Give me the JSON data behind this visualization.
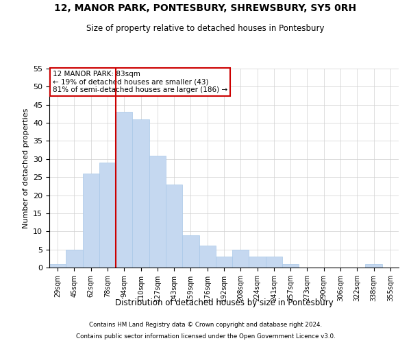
{
  "title1": "12, MANOR PARK, PONTESBURY, SHREWSBURY, SY5 0RH",
  "title2": "Size of property relative to detached houses in Pontesbury",
  "xlabel": "Distribution of detached houses by size in Pontesbury",
  "ylabel": "Number of detached properties",
  "categories": [
    "29sqm",
    "45sqm",
    "62sqm",
    "78sqm",
    "94sqm",
    "110sqm",
    "127sqm",
    "143sqm",
    "159sqm",
    "176sqm",
    "192sqm",
    "208sqm",
    "224sqm",
    "241sqm",
    "257sqm",
    "273sqm",
    "290sqm",
    "306sqm",
    "322sqm",
    "338sqm",
    "355sqm"
  ],
  "values": [
    1,
    5,
    26,
    29,
    43,
    41,
    31,
    23,
    9,
    6,
    3,
    5,
    3,
    3,
    1,
    0,
    0,
    0,
    0,
    1,
    0
  ],
  "bar_color": "#c5d8f0",
  "bar_edge_color": "#a8c8e8",
  "vline_x": 3.5,
  "vline_color": "#cc0000",
  "annotation_text": "12 MANOR PARK: 83sqm\n← 19% of detached houses are smaller (43)\n81% of semi-detached houses are larger (186) →",
  "annotation_box_color": "#ffffff",
  "annotation_box_edge_color": "#cc0000",
  "ylim": [
    0,
    55
  ],
  "yticks": [
    0,
    5,
    10,
    15,
    20,
    25,
    30,
    35,
    40,
    45,
    50,
    55
  ],
  "footer1": "Contains HM Land Registry data © Crown copyright and database right 2024.",
  "footer2": "Contains public sector information licensed under the Open Government Licence v3.0.",
  "bg_color": "#ffffff",
  "grid_color": "#d0d0d0"
}
